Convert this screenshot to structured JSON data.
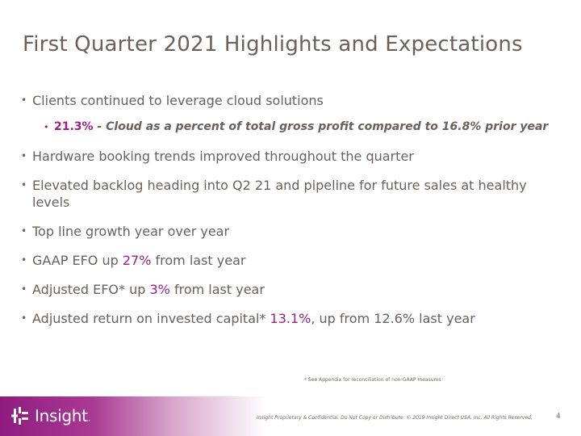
{
  "slide": {
    "title": "First Quarter 2021 Highlights and Expectations",
    "bullets": {
      "b1": "Clients continued to leverage cloud solutions",
      "b1_sub": {
        "pct": "21.3%",
        "text": " - Cloud as a percent of total gross profit compared to 16.8% prior year"
      },
      "b2": "Hardware booking trends improved throughout the quarter",
      "b3": "Elevated backlog heading into Q2 21 and pipeline for future sales at healthy levels",
      "b4": "Top line growth year over year",
      "b5": {
        "pre": "GAAP EFO up ",
        "value": "27%",
        "post": " from last year"
      },
      "b6": {
        "pre": "Adjusted EFO* up ",
        "value": "3%",
        "post": " from last year"
      },
      "b7": {
        "pre": "Adjusted return on invested capital* ",
        "value": "13.1%",
        "post": ", up from 12.6% last year"
      }
    },
    "footnote": "* See Appendix for reconciliation of non-GAAP measures",
    "footer": {
      "logo_text": "Insight",
      "logo_suffix": ".",
      "confidential": "Insight Proprietary & Confidential. Do Not Copy or Distribute. © 2019 Insight Direct USA, Inc. All Rights Reserved.",
      "page_number": "4"
    }
  },
  "colors": {
    "text": "#6b6159",
    "accent": "#9a1f86",
    "band_start": "#8e1c80"
  }
}
